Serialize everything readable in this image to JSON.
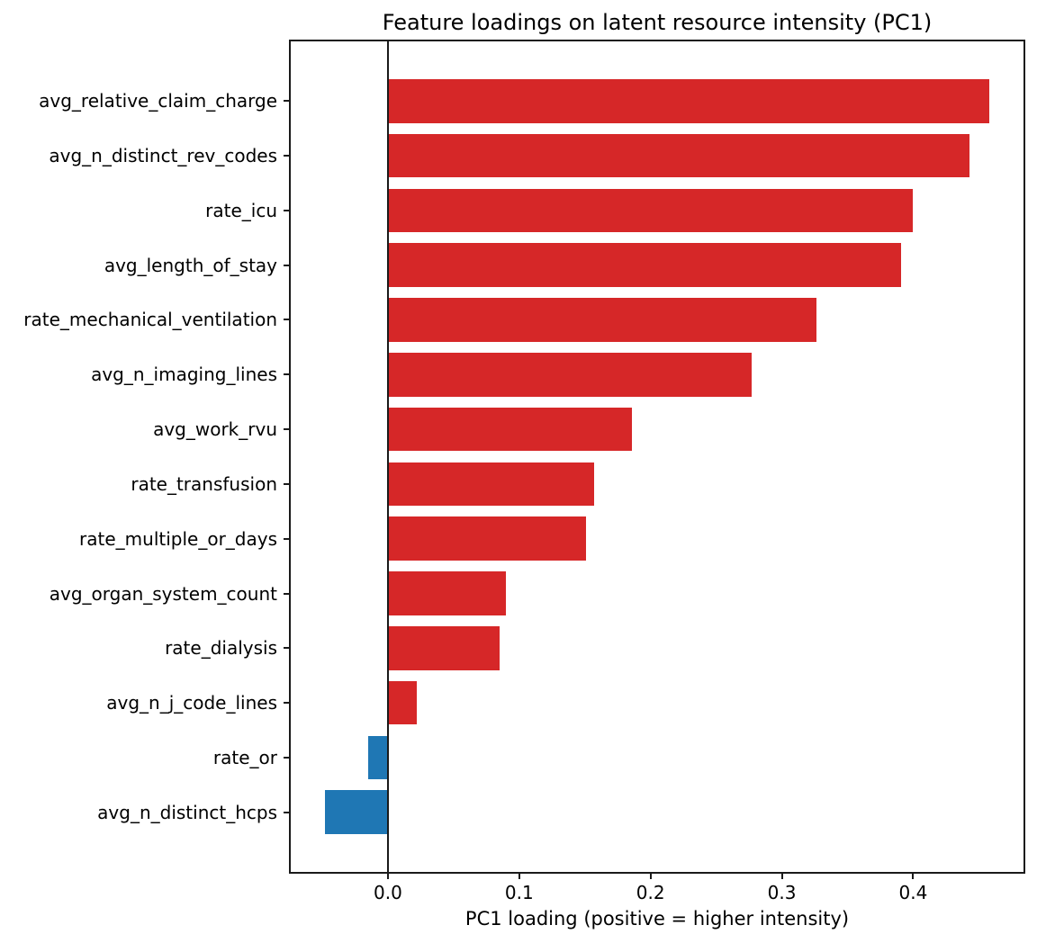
{
  "title": "Feature loadings on latent resource intensity (PC1)",
  "chart_data": {
    "type": "bar",
    "orientation": "horizontal",
    "title": "Feature loadings on latent resource intensity (PC1)",
    "xlabel": "PC1 loading (positive = higher intensity)",
    "ylabel": "",
    "categories": [
      "avg_relative_claim_charge",
      "avg_n_distinct_rev_codes",
      "rate_icu",
      "avg_length_of_stay",
      "rate_mechanical_ventilation",
      "avg_n_imaging_lines",
      "avg_work_rvu",
      "rate_transfusion",
      "rate_multiple_or_days",
      "avg_organ_system_count",
      "rate_dialysis",
      "avg_n_j_code_lines",
      "rate_or",
      "avg_n_distinct_hcps"
    ],
    "values": [
      0.458,
      0.443,
      0.4,
      0.391,
      0.326,
      0.277,
      0.186,
      0.157,
      0.151,
      0.09,
      0.085,
      0.022,
      -0.015,
      -0.048
    ],
    "xlim": [
      -0.074,
      0.484
    ],
    "xticks": [
      0.0,
      0.1,
      0.2,
      0.3,
      0.4
    ],
    "xtick_labels": [
      "0.0",
      "0.1",
      "0.2",
      "0.3",
      "0.4"
    ],
    "grid": false,
    "legend": null,
    "zero_line": true,
    "colors": {
      "positive_bar": "#d62728",
      "negative_bar": "#1f77b4",
      "axis": "#1a1a1a",
      "text": "#000000",
      "background": "#ffffff"
    }
  }
}
